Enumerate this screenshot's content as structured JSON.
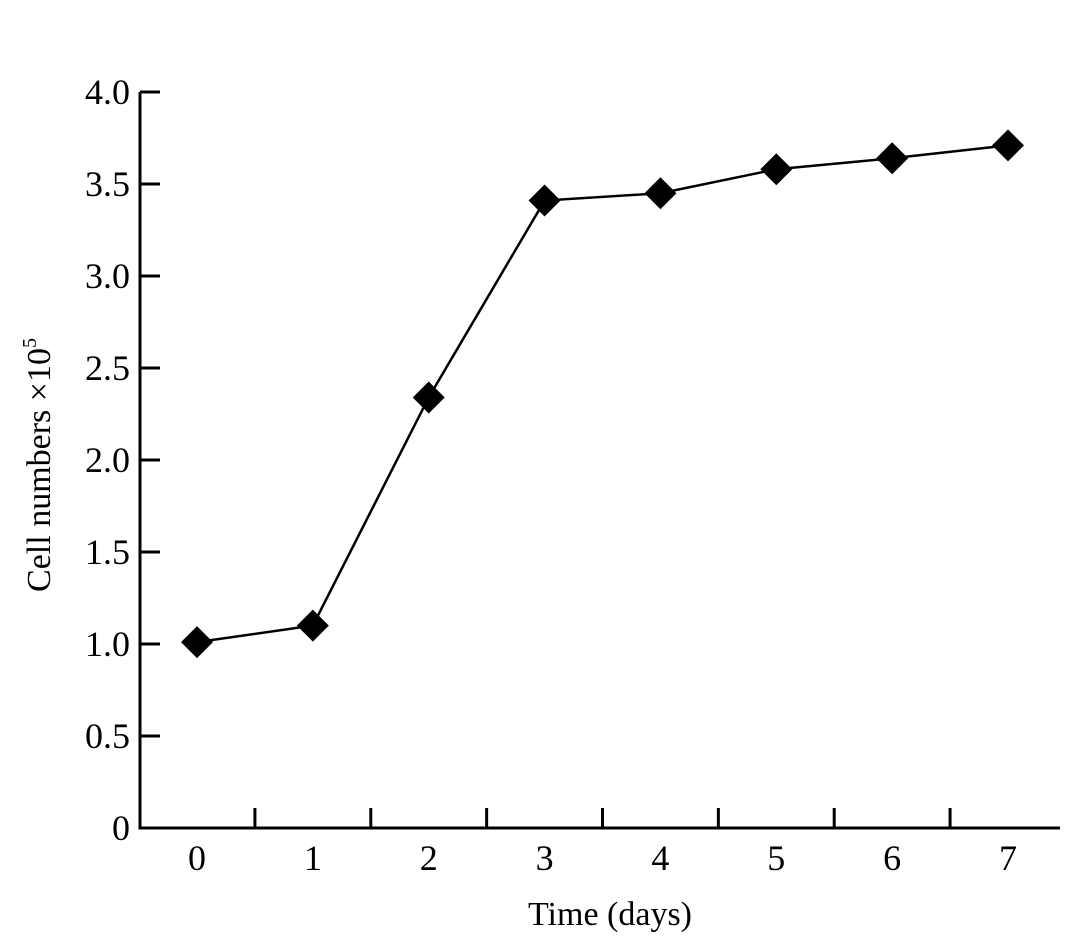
{
  "chart_data": {
    "type": "line",
    "title": "",
    "xlabel": "Time (days)",
    "ylabel": "Cell numbers ×10",
    "ylabel_superscript": "5",
    "x": [
      0,
      1,
      2,
      3,
      4,
      5,
      6,
      7
    ],
    "x_tick_labels": [
      "0",
      "1",
      "2",
      "3",
      "4",
      "5",
      "6",
      "7"
    ],
    "y_ticks": [
      0,
      0.5,
      1.0,
      1.5,
      2.0,
      2.5,
      3.0,
      3.5,
      4.0
    ],
    "y_tick_labels": [
      "0",
      "0.5",
      "1.0",
      "1.5",
      "2.0",
      "2.5",
      "3.0",
      "3.5",
      "4.0"
    ],
    "xlim": [
      0,
      7
    ],
    "ylim": [
      0,
      4.0
    ],
    "grid": false,
    "marker": "diamond",
    "series": [
      {
        "values": [
          1.01,
          1.1,
          2.34,
          3.41,
          3.45,
          3.58,
          3.64,
          3.71
        ],
        "color": "#000000"
      }
    ]
  }
}
